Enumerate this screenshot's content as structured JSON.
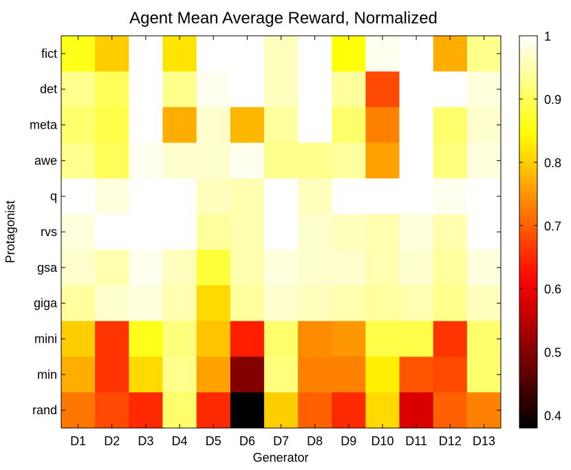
{
  "chart_data": {
    "type": "heatmap",
    "title": "Agent Mean Average Reward, Normalized",
    "xlabel": "Generator",
    "ylabel": "Protagonist",
    "x_categories": [
      "D1",
      "D2",
      "D3",
      "D4",
      "D5",
      "D6",
      "D7",
      "D8",
      "D9",
      "D10",
      "D11",
      "D12",
      "D13"
    ],
    "y_categories": [
      "fict",
      "det",
      "meta",
      "awe",
      "q",
      "rvs",
      "gsa",
      "giga",
      "mini",
      "min",
      "rand"
    ],
    "values": [
      [
        0.86,
        0.8,
        1.0,
        0.82,
        1.0,
        1.0,
        0.96,
        1.0,
        0.85,
        0.99,
        1.0,
        0.77,
        0.93
      ],
      [
        0.93,
        0.9,
        1.0,
        0.93,
        0.99,
        1.0,
        0.96,
        1.0,
        0.94,
        0.68,
        1.0,
        1.0,
        0.98
      ],
      [
        0.91,
        0.89,
        1.0,
        0.77,
        0.97,
        0.78,
        0.94,
        1.0,
        0.91,
        0.73,
        1.0,
        0.91,
        0.97
      ],
      [
        0.93,
        0.9,
        0.99,
        0.97,
        0.97,
        0.99,
        0.93,
        0.93,
        0.94,
        0.76,
        1.0,
        0.92,
        0.98
      ],
      [
        1.0,
        0.98,
        1.0,
        1.0,
        0.96,
        0.95,
        1.0,
        0.96,
        1.0,
        1.0,
        1.0,
        0.99,
        1.0
      ],
      [
        0.98,
        1.0,
        1.0,
        1.0,
        0.94,
        0.95,
        1.0,
        0.97,
        0.96,
        0.95,
        0.98,
        0.95,
        1.0
      ],
      [
        0.97,
        0.95,
        0.99,
        0.96,
        0.88,
        0.95,
        0.98,
        0.97,
        0.97,
        0.95,
        0.97,
        0.94,
        0.98
      ],
      [
        0.94,
        0.97,
        0.98,
        0.95,
        0.81,
        0.94,
        0.97,
        0.96,
        0.95,
        0.94,
        0.95,
        0.93,
        0.96
      ],
      [
        0.8,
        0.66,
        0.86,
        0.92,
        0.79,
        0.64,
        0.91,
        0.74,
        0.75,
        0.89,
        0.89,
        0.66,
        0.91
      ],
      [
        0.77,
        0.66,
        0.81,
        0.93,
        0.76,
        0.5,
        0.92,
        0.73,
        0.73,
        0.83,
        0.69,
        0.68,
        0.91
      ],
      [
        0.72,
        0.68,
        0.65,
        0.91,
        0.65,
        0.38,
        0.8,
        0.7,
        0.65,
        0.81,
        0.58,
        0.7,
        0.73
      ]
    ],
    "colorbar": {
      "range": [
        0.38,
        1.0
      ],
      "ticks": [
        "0.4",
        "0.5",
        "0.6",
        "0.7",
        "0.8",
        "0.9",
        "1"
      ],
      "colormap": "hot"
    }
  }
}
